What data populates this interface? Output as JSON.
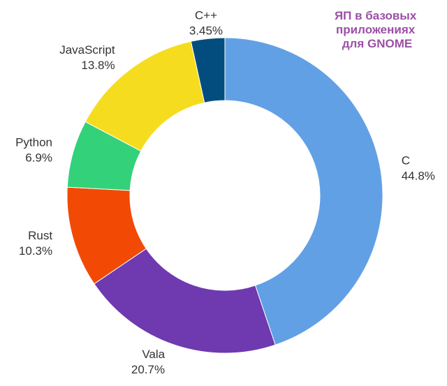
{
  "chart_data": {
    "type": "pie",
    "title_lines": [
      "ЯП в базовых",
      "приложениях",
      "для GNOME"
    ],
    "title_color": "#9b4fa6",
    "slices": [
      {
        "name": "C",
        "value": 44.8,
        "label": "44.8%",
        "color": "#62a0e5"
      },
      {
        "name": "Vala",
        "value": 20.7,
        "label": "20.7%",
        "color": "#6f39b0"
      },
      {
        "name": "Rust",
        "value": 10.3,
        "label": "10.3%",
        "color": "#f24a05"
      },
      {
        "name": "Python",
        "value": 6.9,
        "label": "6.9%",
        "color": "#33d17a"
      },
      {
        "name": "JavaScript",
        "value": 13.8,
        "label": "13.8%",
        "color": "#f6dc1f"
      },
      {
        "name": "C++",
        "value": 3.45,
        "label": "3.45%",
        "color": "#034d7e"
      }
    ],
    "start_angle_deg": 0,
    "direction": "clockwise",
    "donut": true,
    "legend": "none"
  }
}
